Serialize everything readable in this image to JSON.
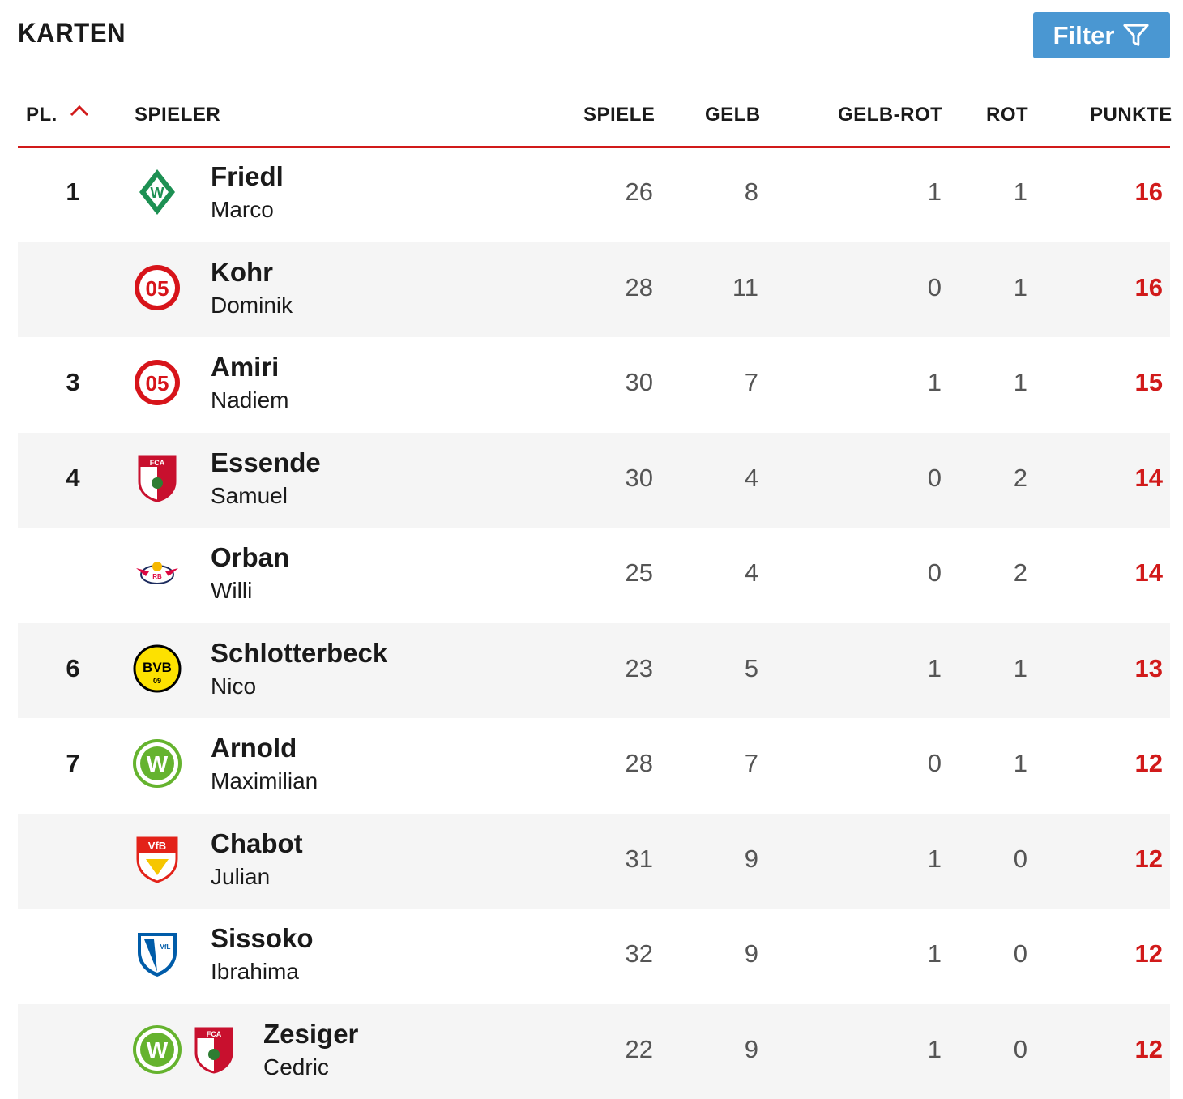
{
  "title": "KARTEN",
  "filter_label": "Filter",
  "columns": {
    "rank": "PL.",
    "player": "SPIELER",
    "games": "SPIELE",
    "yellow": "GELB",
    "yellow_red": "GELB-ROT",
    "red": "ROT",
    "points": "PUNKTE"
  },
  "colors": {
    "accent_red": "#d11a1a",
    "filter_blue": "#4a97d2"
  },
  "rows": [
    {
      "rank": "1",
      "last": "Friedl",
      "first": "Marco",
      "games": "26",
      "yellow": "8",
      "yellow_red": "1",
      "red": "1",
      "points": "16",
      "clubs": [
        "werder-bremen-logo"
      ]
    },
    {
      "rank": "",
      "last": "Kohr",
      "first": "Dominik",
      "games": "28",
      "yellow": "11",
      "yellow_red": "0",
      "red": "1",
      "points": "16",
      "clubs": [
        "mainz-05-logo"
      ]
    },
    {
      "rank": "3",
      "last": "Amiri",
      "first": "Nadiem",
      "games": "30",
      "yellow": "7",
      "yellow_red": "1",
      "red": "1",
      "points": "15",
      "clubs": [
        "mainz-05-logo"
      ]
    },
    {
      "rank": "4",
      "last": "Essende",
      "first": "Samuel",
      "games": "30",
      "yellow": "4",
      "yellow_red": "0",
      "red": "2",
      "points": "14",
      "clubs": [
        "fc-augsburg-logo"
      ]
    },
    {
      "rank": "",
      "last": "Orban",
      "first": "Willi",
      "games": "25",
      "yellow": "4",
      "yellow_red": "0",
      "red": "2",
      "points": "14",
      "clubs": [
        "rb-leipzig-logo"
      ]
    },
    {
      "rank": "6",
      "last": "Schlotterbeck",
      "first": "Nico",
      "games": "23",
      "yellow": "5",
      "yellow_red": "1",
      "red": "1",
      "points": "13",
      "clubs": [
        "bvb-logo"
      ]
    },
    {
      "rank": "7",
      "last": "Arnold",
      "first": "Maximilian",
      "games": "28",
      "yellow": "7",
      "yellow_red": "0",
      "red": "1",
      "points": "12",
      "clubs": [
        "wolfsburg-logo"
      ]
    },
    {
      "rank": "",
      "last": "Chabot",
      "first": "Julian",
      "games": "31",
      "yellow": "9",
      "yellow_red": "1",
      "red": "0",
      "points": "12",
      "clubs": [
        "vfb-stuttgart-logo"
      ]
    },
    {
      "rank": "",
      "last": "Sissoko",
      "first": "Ibrahima",
      "games": "32",
      "yellow": "9",
      "yellow_red": "1",
      "red": "0",
      "points": "12",
      "clubs": [
        "vfl-bochum-logo"
      ]
    },
    {
      "rank": "",
      "last": "Zesiger",
      "first": "Cedric",
      "games": "22",
      "yellow": "9",
      "yellow_red": "1",
      "red": "0",
      "points": "12",
      "clubs": [
        "wolfsburg-logo",
        "fc-augsburg-logo"
      ]
    }
  ]
}
